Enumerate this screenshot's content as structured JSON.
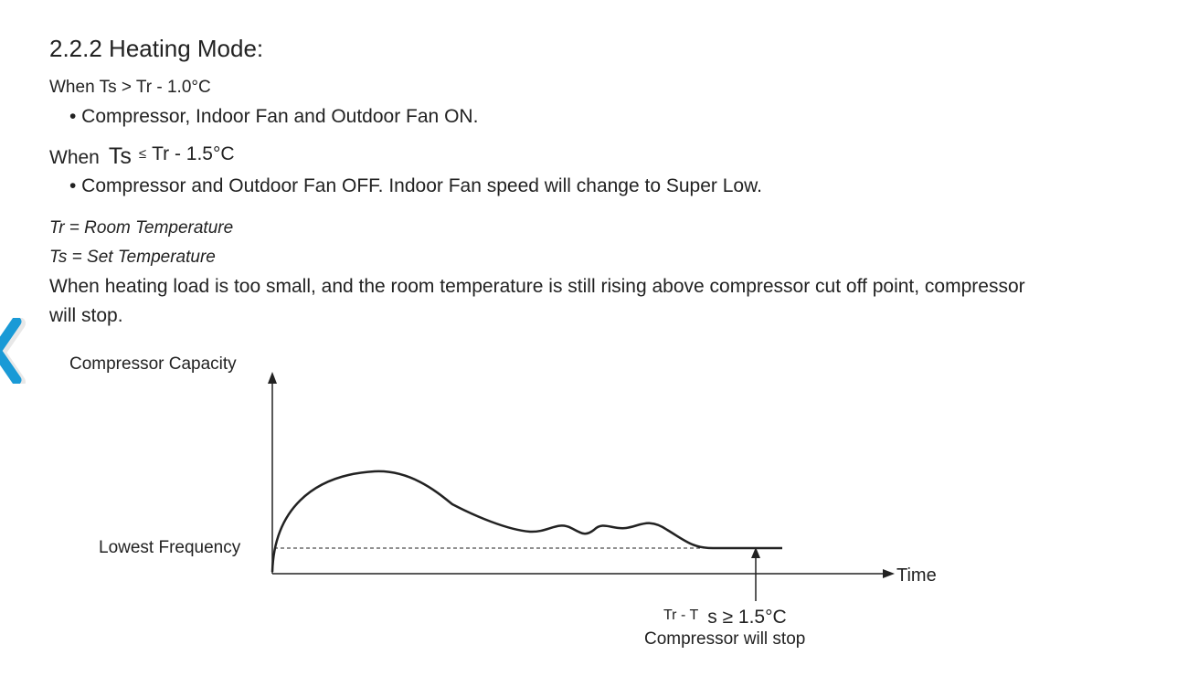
{
  "doc": {
    "heading": "2.2.2 Heating Mode:",
    "cond1": "When Ts > Tr - 1.0°C",
    "bullet1": "• Compressor, Indoor Fan and Outdoor Fan ON.",
    "cond2": {
      "when": "When",
      "ts": "Ts",
      "op": "≤",
      "rest": "Tr - 1.5°C"
    },
    "bullet2": "• Compressor and Outdoor Fan OFF. Indoor Fan speed will change to Super Low.",
    "def_tr": "Tr = Room Temperature",
    "def_ts": "Ts = Set Temperature",
    "paragraph": "When heating load is too small, and the room temperature is still rising above compressor cut off point, compressor will stop."
  },
  "diagram": {
    "y_label": "Compressor Capacity",
    "level_label": "Lowest Frequency",
    "x_label": "Time",
    "stop_condition_a": "Tr - T",
    "stop_condition_b": "s ≥ 1.5°C",
    "stop_label": "Compressor will stop",
    "line_color": "#222222"
  },
  "nav": {
    "icon": "chevron-left-icon",
    "color": "#1a9ad6"
  }
}
